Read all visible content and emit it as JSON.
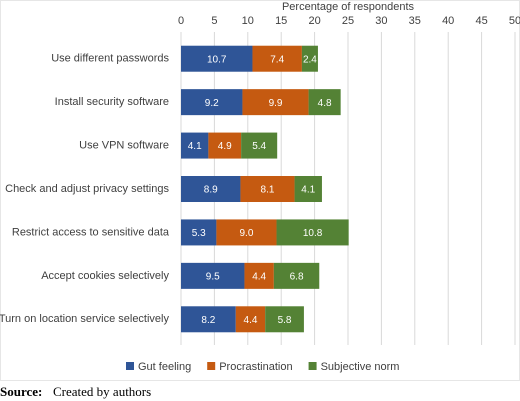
{
  "chart_data": {
    "type": "stacked-bar-horizontal",
    "x_label": "Percentage of respondents",
    "categories": [
      "Use different passwords",
      "Install security software",
      "Use VPN software",
      "Check and adjust privacy settings",
      "Restrict access to sensitive data",
      "Accept cookies selectively",
      "Turn on location service selectively"
    ],
    "series": [
      {
        "name": "Gut feeling",
        "color": "#2f5597",
        "values": [
          10.7,
          9.2,
          4.1,
          8.9,
          5.3,
          9.5,
          8.2
        ]
      },
      {
        "name": "Procrastination",
        "color": "#c55a11",
        "values": [
          7.4,
          9.9,
          4.9,
          8.1,
          9.0,
          4.4,
          4.4
        ],
        "value_labels": [
          "7.4",
          "9.9",
          "4.9",
          "8.1",
          "9.0",
          "4.4",
          "4.4"
        ]
      },
      {
        "name": "Subjective norm",
        "color": "#548235",
        "values": [
          2.4,
          4.8,
          5.4,
          4.1,
          10.8,
          6.8,
          5.8
        ]
      }
    ],
    "xlim": [
      0,
      50
    ],
    "xticks": [
      0,
      5,
      10,
      15,
      20,
      25,
      30,
      35,
      40,
      45,
      50
    ],
    "grid": true,
    "legend": "bottom"
  },
  "source": {
    "label": "Source:",
    "text": "Created by authors"
  }
}
